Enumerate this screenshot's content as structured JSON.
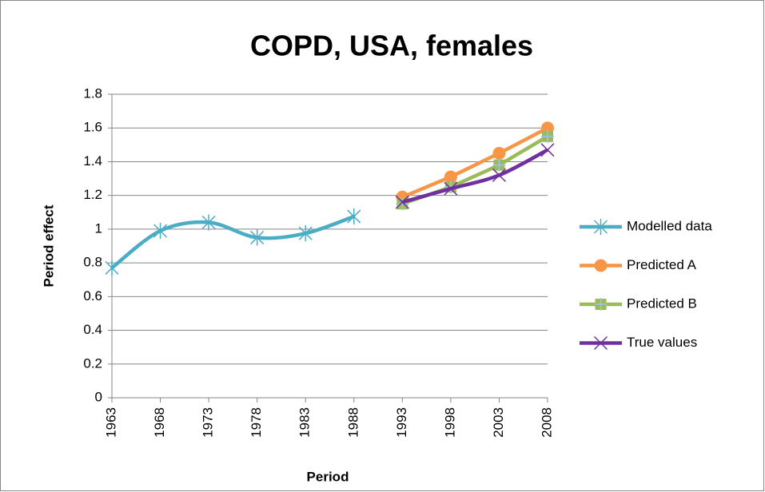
{
  "chart_data": {
    "type": "line",
    "title": "COPD, USA, females",
    "x_label": "Period",
    "y_label": "Period effect",
    "categories": [
      "1963",
      "1968",
      "1973",
      "1978",
      "1983",
      "1988",
      "1993",
      "1998",
      "2003",
      "2008"
    ],
    "series": [
      {
        "name": "Modelled data",
        "color": "#4bacc6",
        "marker": "asterisk",
        "smooth": true,
        "values": [
          0.77,
          0.99,
          1.04,
          0.95,
          0.975,
          1.075,
          null,
          null,
          null,
          null
        ]
      },
      {
        "name": "Predicted A",
        "color": "#f79646",
        "marker": "circle",
        "smooth": false,
        "values": [
          null,
          null,
          null,
          null,
          null,
          null,
          1.19,
          1.31,
          1.45,
          1.6
        ]
      },
      {
        "name": "Predicted B",
        "color": "#9bbb59",
        "marker": "square-plus",
        "smooth": false,
        "values": [
          null,
          null,
          null,
          null,
          null,
          null,
          1.15,
          1.25,
          1.38,
          1.55
        ]
      },
      {
        "name": "True values",
        "color": "#7030a0",
        "marker": "x",
        "smooth": true,
        "values": [
          null,
          null,
          null,
          null,
          null,
          null,
          1.16,
          1.24,
          1.32,
          1.47
        ]
      }
    ],
    "ylim": [
      0,
      1.8
    ],
    "yticks": [
      0,
      0.2,
      0.4,
      0.6,
      0.8,
      1,
      1.2,
      1.4,
      1.6,
      1.8
    ],
    "grid": true,
    "legend": "right"
  }
}
